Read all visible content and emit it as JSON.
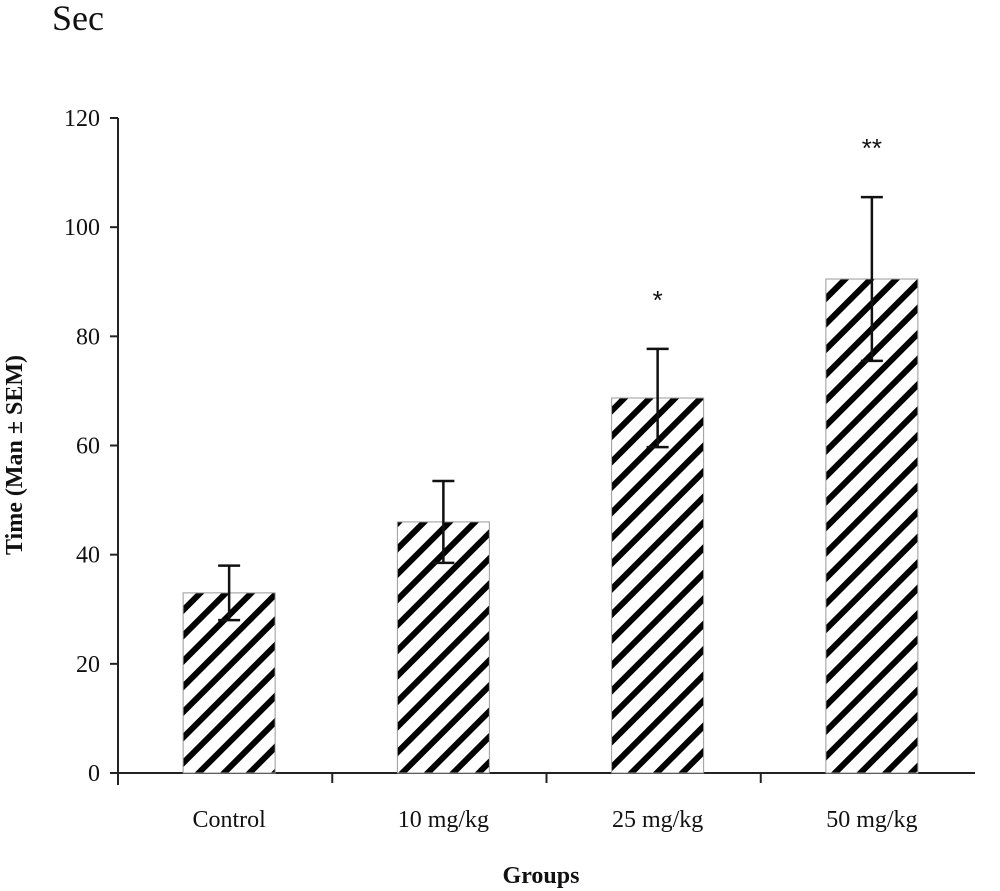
{
  "chart_data": {
    "type": "bar",
    "title": "",
    "unit_label": "Sec",
    "xlabel": "Groups",
    "ylabel": "Time (Man ± SEM)",
    "ylim": [
      0,
      120
    ],
    "yticks": [
      0,
      20,
      40,
      60,
      80,
      100,
      120
    ],
    "categories": [
      "Control",
      "10 mg/kg",
      "25 mg/kg",
      "50 mg/kg"
    ],
    "values": [
      33,
      46,
      68.7,
      90.5
    ],
    "errors": [
      5,
      7.5,
      9,
      15
    ],
    "significance": [
      "",
      "",
      "*",
      "**"
    ],
    "bar_pattern": "diagonal-hatch",
    "bar_color": "#000000",
    "grid": false,
    "legend": "none"
  }
}
